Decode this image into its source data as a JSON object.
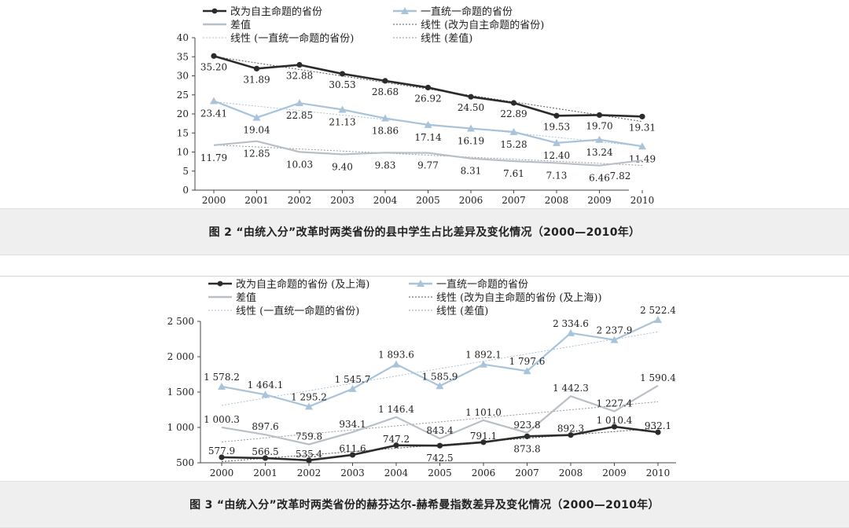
{
  "charts": [
    {
      "figure_caption": "图 2 “由统入分”改革时两类省份的县中学生占比差异及变化情况（2000—2010年）",
      "chart_data": {
        "type": "line",
        "title": "",
        "xlabel": "",
        "ylabel": "",
        "categories": [
          "2000",
          "2001",
          "2002",
          "2003",
          "2004",
          "2005",
          "2006",
          "2007",
          "2008",
          "2009",
          "2010"
        ],
        "ylim": [
          0,
          40
        ],
        "yticks": [
          0,
          5,
          10,
          15,
          20,
          25,
          30,
          35,
          40
        ],
        "ytick_labels": [
          "0",
          "5",
          "10",
          "15",
          "20",
          "25",
          "30",
          "35",
          "40"
        ],
        "grid": false,
        "legend_position": "top",
        "series": [
          {
            "name": "改为自主命题的省份",
            "color": "#2b2b2b",
            "marker": "circle",
            "values": [
              35.2,
              31.89,
              32.88,
              30.53,
              28.68,
              26.92,
              24.5,
              22.89,
              19.53,
              19.7,
              19.31
            ],
            "labels": [
              "35.20",
              "31.89",
              "32.88",
              "30.53",
              "28.68",
              "26.92",
              "24.50",
              "22.89",
              "19.53",
              "19.70",
              "19.31"
            ]
          },
          {
            "name": "一直统一命题的省份",
            "color": "#a9c3d8",
            "marker": "triangle",
            "values": [
              23.41,
              19.04,
              22.85,
              21.13,
              18.86,
              17.14,
              16.19,
              15.28,
              12.4,
              13.24,
              11.49
            ],
            "labels": [
              "23.41",
              "19.04",
              "22.85",
              "21.13",
              "18.86",
              "17.14",
              "16.19",
              "15.28",
              "12.40",
              "13.24",
              "11.49"
            ]
          },
          {
            "name": "差值",
            "color": "#b9bfc6",
            "marker": "none",
            "values": [
              11.79,
              12.85,
              10.03,
              9.4,
              9.83,
              9.77,
              8.31,
              7.61,
              7.13,
              6.46,
              7.82
            ],
            "labels": [
              "11.79",
              "12.85",
              "10.03",
              "9.40",
              "9.83",
              "9.77",
              "8.31",
              "7.61",
              "7.13",
              "6.46",
              "7.82"
            ]
          }
        ],
        "trendlines": [
          {
            "name": "线性 (改为自主命题的省份)",
            "of": 0,
            "color": "#555555"
          },
          {
            "name": "线性 (一直统一命题的省份)",
            "of": 1,
            "color": "#a9c3d8"
          },
          {
            "name": "线性 (差值)",
            "of": 2,
            "color": "#999999"
          }
        ]
      }
    },
    {
      "figure_caption": "图 3 “由统入分”改革时两类省份的赫芬达尔-赫希曼指数差异及变化情况（2000—2010年）",
      "chart_data": {
        "type": "line",
        "title": "",
        "xlabel": "",
        "ylabel": "",
        "categories": [
          "2000",
          "2001",
          "2002",
          "2003",
          "2004",
          "2005",
          "2006",
          "2007",
          "2008",
          "2009",
          "2010"
        ],
        "ylim": [
          500,
          2500
        ],
        "yticks": [
          500,
          1000,
          1500,
          2000,
          2500
        ],
        "ytick_labels": [
          "500",
          "1 000",
          "1 500",
          "2 000",
          "2 500"
        ],
        "grid": false,
        "legend_position": "top",
        "series": [
          {
            "name": "改为自主命题的省份 (及上海)",
            "color": "#2b2b2b",
            "marker": "circle",
            "values": [
              577.9,
              566.5,
              535.4,
              611.6,
              747.2,
              742.5,
              791.1,
              873.8,
              892.3,
              1010.4,
              932.1
            ],
            "labels": [
              "577.9",
              "566.5",
              "535.4",
              "611.6",
              "747.2",
              "742.5",
              "791.1",
              "873.8",
              "892.3",
              "1 010.4",
              "932.1"
            ]
          },
          {
            "name": "一直统一命题的省份",
            "color": "#a9c3d8",
            "marker": "triangle",
            "values": [
              1578.2,
              1464.1,
              1295.2,
              1545.7,
              1893.6,
              1585.9,
              1892.1,
              1797.6,
              2334.6,
              2237.9,
              2522.4
            ],
            "labels": [
              "1 578.2",
              "1 464.1",
              "1 295.2",
              "1 545.7",
              "1 893.6",
              "1 585.9",
              "1 892.1",
              "1 797.6",
              "2 334.6",
              "2 237.9",
              "2 522.4"
            ]
          },
          {
            "name": "差值",
            "color": "#b9bfc6",
            "marker": "none",
            "values": [
              1000.3,
              897.6,
              759.8,
              934.1,
              1146.4,
              843.4,
              1101.0,
              923.8,
              1442.3,
              1227.4,
              1590.4
            ],
            "labels": [
              "1 000.3",
              "897.6",
              "759.8",
              "934.1",
              "1 146.4",
              "843.4",
              "1 101.0",
              "923.8",
              "1 442.3",
              "1 227.4",
              "1 590.4"
            ]
          }
        ],
        "trendlines": [
          {
            "name": "线性 (改为自主命题的省份 (及上海))",
            "of": 0,
            "color": "#555555"
          },
          {
            "name": "线性 (一直统一命题的省份)",
            "of": 1,
            "color": "#a9c3d8"
          },
          {
            "name": "线性 (差值)",
            "of": 2,
            "color": "#999999"
          }
        ]
      }
    }
  ]
}
